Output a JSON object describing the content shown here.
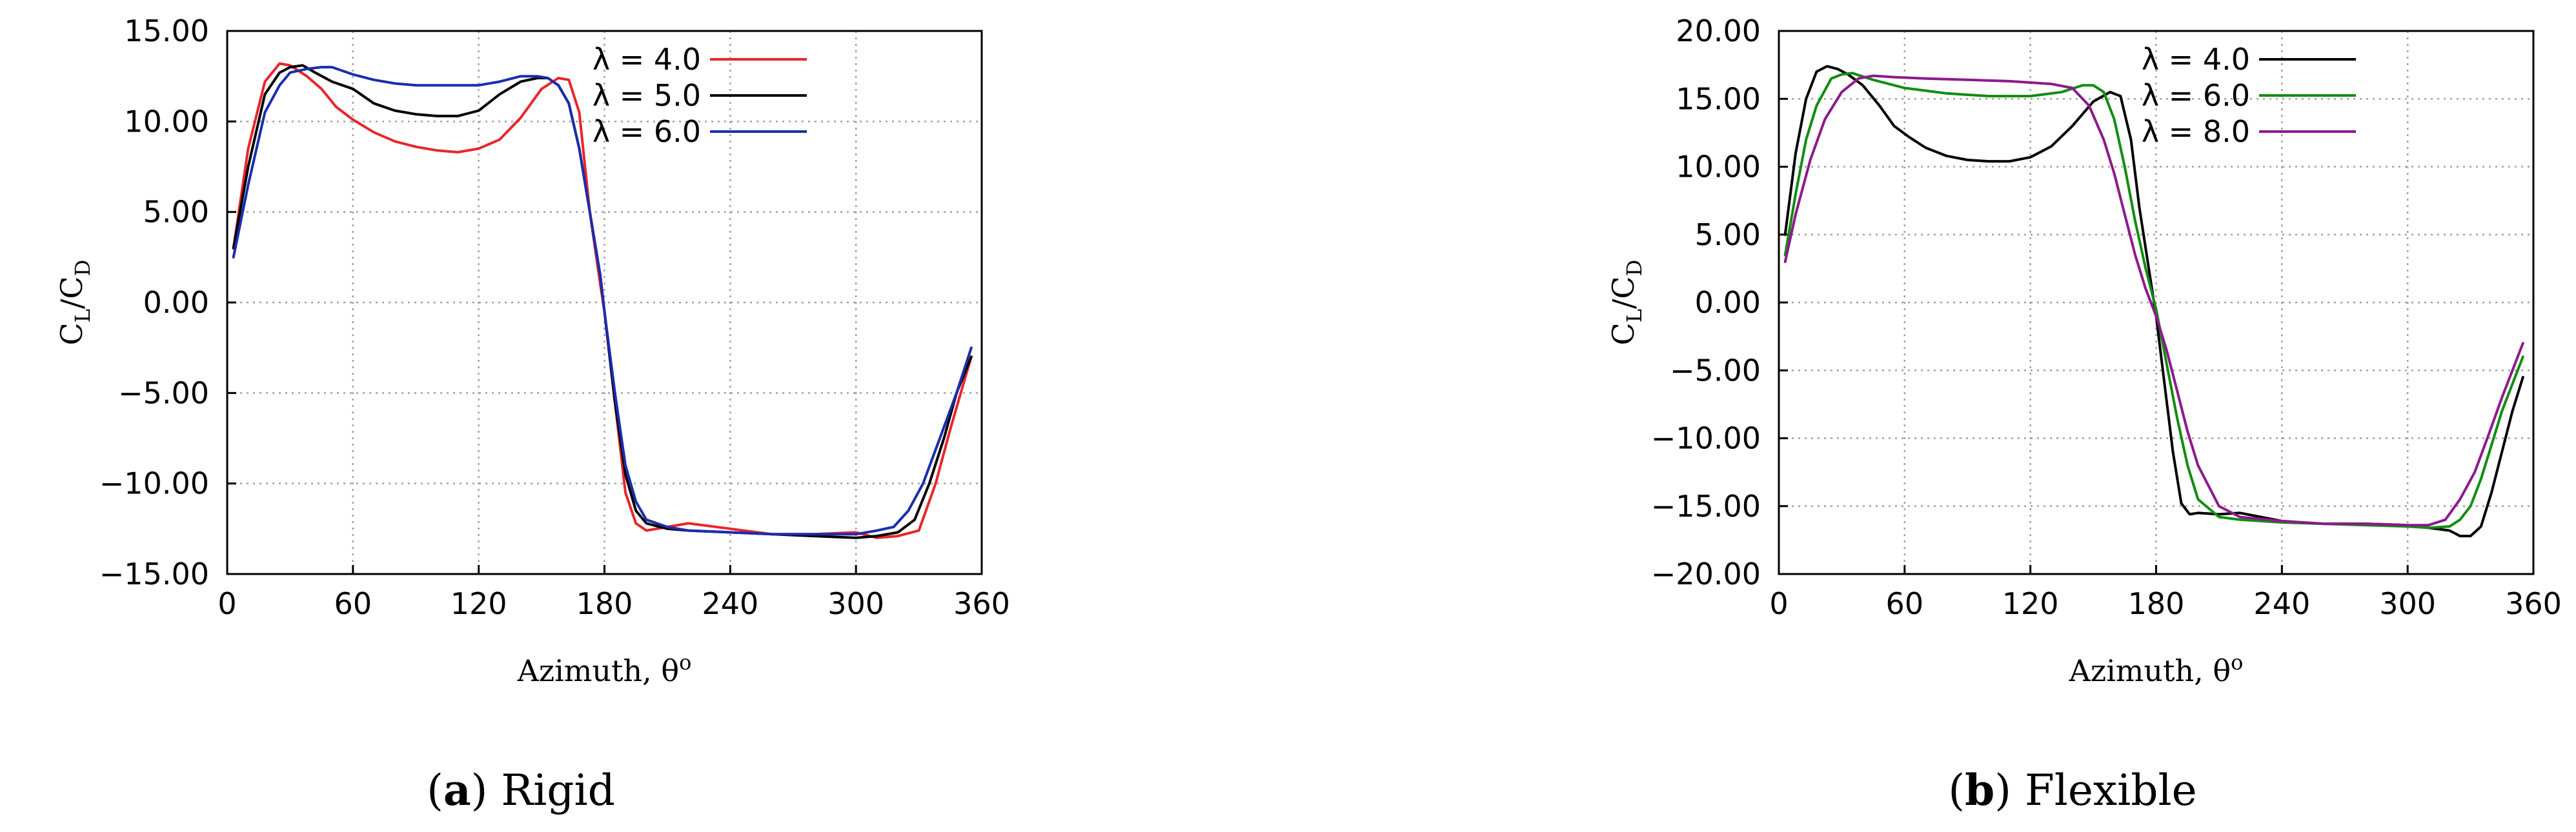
{
  "chart_data": [
    {
      "type": "line",
      "panel": "a",
      "caption_letter": "a",
      "caption_text": "Rigid",
      "xlabel": "Azimuth, θ",
      "xlabel_sup": "o",
      "ylabel_main": "C",
      "ylabel_sub1": "L",
      "ylabel_sep": "/C",
      "ylabel_sub2": "D",
      "xlim": [
        0,
        360
      ],
      "ylim": [
        -15,
        15
      ],
      "xticks": [
        0,
        60,
        120,
        180,
        240,
        300,
        360
      ],
      "xtick_labels": [
        "0",
        "60",
        "120",
        "180",
        "240",
        "300",
        "360"
      ],
      "yticks": [
        -15,
        -10,
        -5,
        0,
        5,
        10,
        15
      ],
      "ytick_labels": [
        "−15.00",
        "−10.00",
        "−5.00",
        "0.00",
        "5.00",
        "10.00",
        "15.00"
      ],
      "grid": true,
      "legend_position": "top-right",
      "series": [
        {
          "name": "λ = 4.0",
          "color": "#e8262b",
          "x": [
            3,
            10,
            18,
            25,
            30,
            38,
            45,
            52,
            60,
            70,
            80,
            90,
            100,
            110,
            120,
            130,
            140,
            150,
            158,
            163,
            168,
            173,
            178,
            180,
            185,
            190,
            195,
            200,
            210,
            220,
            240,
            260,
            280,
            300,
            310,
            320,
            330,
            338,
            345,
            350,
            355
          ],
          "y": [
            3.0,
            8.5,
            12.2,
            13.2,
            13.1,
            12.5,
            11.8,
            10.8,
            10.1,
            9.4,
            8.9,
            8.6,
            8.4,
            8.3,
            8.5,
            9.0,
            10.2,
            11.8,
            12.4,
            12.3,
            10.5,
            5.0,
            1.0,
            -0.5,
            -5.5,
            -10.5,
            -12.2,
            -12.6,
            -12.4,
            -12.2,
            -12.5,
            -12.8,
            -12.8,
            -12.7,
            -13.0,
            -12.9,
            -12.6,
            -10.0,
            -7.0,
            -5.0,
            -3.0
          ]
        },
        {
          "name": "λ = 5.0",
          "color": "#000000",
          "x": [
            3,
            10,
            18,
            25,
            30,
            36,
            42,
            50,
            60,
            70,
            80,
            90,
            100,
            110,
            120,
            130,
            140,
            148,
            153,
            158,
            163,
            168,
            173,
            178,
            180,
            185,
            190,
            195,
            200,
            210,
            220,
            240,
            260,
            280,
            300,
            310,
            320,
            328,
            335,
            342,
            348,
            355
          ],
          "y": [
            3.0,
            7.5,
            11.5,
            12.7,
            13.0,
            13.1,
            12.7,
            12.2,
            11.8,
            11.0,
            10.6,
            10.4,
            10.3,
            10.3,
            10.6,
            11.5,
            12.2,
            12.4,
            12.4,
            12.0,
            11.0,
            8.5,
            5.0,
            1.5,
            -0.5,
            -5.5,
            -9.5,
            -11.5,
            -12.2,
            -12.5,
            -12.6,
            -12.7,
            -12.8,
            -12.9,
            -13.0,
            -12.9,
            -12.7,
            -12.0,
            -10.0,
            -7.5,
            -5.0,
            -3.0
          ]
        },
        {
          "name": "λ = 6.0",
          "color": "#1c2cae",
          "x": [
            3,
            10,
            18,
            25,
            30,
            38,
            45,
            50,
            60,
            70,
            80,
            90,
            100,
            110,
            120,
            130,
            140,
            148,
            153,
            158,
            163,
            168,
            173,
            178,
            180,
            185,
            190,
            195,
            200,
            210,
            220,
            240,
            260,
            280,
            300,
            310,
            318,
            325,
            332,
            340,
            348,
            355
          ],
          "y": [
            2.5,
            6.5,
            10.5,
            12.0,
            12.7,
            12.9,
            13.0,
            13.0,
            12.6,
            12.3,
            12.1,
            12.0,
            12.0,
            12.0,
            12.0,
            12.2,
            12.5,
            12.5,
            12.4,
            12.0,
            11.0,
            8.5,
            5.0,
            1.5,
            -0.5,
            -5.0,
            -9.0,
            -11.0,
            -12.0,
            -12.4,
            -12.6,
            -12.7,
            -12.8,
            -12.8,
            -12.8,
            -12.6,
            -12.4,
            -11.5,
            -10.0,
            -7.5,
            -5.0,
            -2.5
          ]
        }
      ]
    },
    {
      "type": "line",
      "panel": "b",
      "caption_letter": "b",
      "caption_text": "Flexible",
      "xlabel": "Azimuth, θ",
      "xlabel_sup": "o",
      "ylabel_main": "C",
      "ylabel_sub1": "L",
      "ylabel_sep": "/C",
      "ylabel_sub2": "D",
      "xlim": [
        0,
        360
      ],
      "ylim": [
        -20,
        20
      ],
      "xticks": [
        0,
        60,
        120,
        180,
        240,
        300,
        360
      ],
      "xtick_labels": [
        "0",
        "60",
        "120",
        "180",
        "240",
        "300",
        "360"
      ],
      "yticks": [
        -20,
        -15,
        -10,
        -5,
        0,
        5,
        10,
        15,
        20
      ],
      "ytick_labels": [
        "−20.00",
        "−15.00",
        "−10.00",
        "−5.00",
        "0.00",
        "5.00",
        "10.00",
        "15.00",
        "20.00"
      ],
      "grid": true,
      "legend_position": "top-right",
      "series": [
        {
          "name": "λ = 4.0",
          "color": "#000000",
          "x": [
            3,
            8,
            13,
            18,
            23,
            28,
            33,
            40,
            48,
            55,
            62,
            70,
            80,
            90,
            100,
            110,
            120,
            130,
            140,
            150,
            158,
            163,
            168,
            172,
            176,
            180,
            184,
            188,
            192,
            196,
            200,
            210,
            220,
            240,
            260,
            280,
            300,
            310,
            320,
            325,
            330,
            335,
            340,
            345,
            350,
            355
          ],
          "y": [
            5.0,
            11.0,
            15.0,
            17.0,
            17.4,
            17.2,
            16.8,
            16.0,
            14.5,
            13.0,
            12.2,
            11.4,
            10.8,
            10.5,
            10.4,
            10.4,
            10.7,
            11.5,
            13.0,
            14.8,
            15.5,
            15.2,
            12.0,
            7.0,
            3.0,
            -1.0,
            -6.0,
            -11.0,
            -14.8,
            -15.6,
            -15.5,
            -15.6,
            -15.5,
            -16.1,
            -16.3,
            -16.3,
            -16.4,
            -16.6,
            -16.8,
            -17.2,
            -17.2,
            -16.5,
            -14.0,
            -11.0,
            -8.0,
            -5.5
          ]
        },
        {
          "name": "λ = 6.0",
          "color": "#118c11",
          "x": [
            3,
            8,
            13,
            18,
            25,
            30,
            35,
            45,
            60,
            80,
            100,
            120,
            135,
            145,
            150,
            155,
            160,
            165,
            170,
            175,
            180,
            185,
            190,
            195,
            200,
            210,
            220,
            240,
            260,
            280,
            300,
            310,
            320,
            325,
            330,
            335,
            340,
            345,
            350,
            355
          ],
          "y": [
            3.5,
            8.0,
            12.0,
            14.5,
            16.5,
            16.8,
            16.9,
            16.4,
            15.8,
            15.4,
            15.2,
            15.2,
            15.5,
            16.0,
            16.0,
            15.5,
            13.5,
            10.0,
            6.0,
            2.5,
            -0.5,
            -4.5,
            -8.5,
            -12.0,
            -14.5,
            -15.8,
            -16.0,
            -16.2,
            -16.3,
            -16.4,
            -16.5,
            -16.6,
            -16.5,
            -16.0,
            -15.0,
            -13.0,
            -10.5,
            -8.0,
            -6.0,
            -4.0
          ]
        },
        {
          "name": "λ = 8.0",
          "color": "#8c1a8c",
          "x": [
            3,
            8,
            15,
            22,
            30,
            38,
            45,
            55,
            70,
            90,
            110,
            130,
            140,
            148,
            155,
            160,
            165,
            170,
            175,
            180,
            185,
            190,
            195,
            200,
            210,
            220,
            240,
            260,
            280,
            300,
            310,
            318,
            325,
            332,
            338,
            345,
            350,
            355
          ],
          "y": [
            3.0,
            6.5,
            10.5,
            13.5,
            15.5,
            16.5,
            16.7,
            16.6,
            16.5,
            16.4,
            16.3,
            16.1,
            15.8,
            14.5,
            12.0,
            9.5,
            6.5,
            3.5,
            1.0,
            -1.0,
            -3.5,
            -6.5,
            -9.5,
            -12.0,
            -15.0,
            -15.8,
            -16.1,
            -16.3,
            -16.3,
            -16.4,
            -16.4,
            -16.0,
            -14.5,
            -12.5,
            -10.0,
            -7.0,
            -5.0,
            -3.0
          ]
        }
      ]
    }
  ]
}
